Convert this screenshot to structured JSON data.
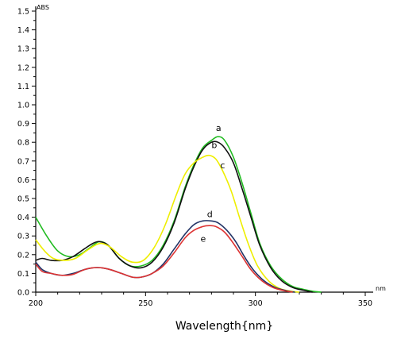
{
  "chart_data": {
    "type": "line",
    "title": "",
    "ylabel": "ABS",
    "xlabel": "Wavelength{nm}",
    "x_unit": "nm",
    "xlim": [
      200,
      350
    ],
    "ylim": [
      0,
      1.5
    ],
    "xticks": [
      200,
      250,
      300,
      350
    ],
    "xtick_labels": [
      "200",
      "250",
      "300",
      "350"
    ],
    "yticks": [
      0,
      0.1,
      0.2,
      0.3,
      0.4,
      0.5,
      0.6,
      0.7,
      0.8,
      0.9,
      1.0,
      1.1,
      1.2,
      1.3,
      1.4,
      1.5
    ],
    "ytick_labels": [
      "0.0",
      "0.1",
      "0.2",
      "0.3",
      "0.4",
      "0.5",
      "0.6",
      "0.7",
      "0.8",
      "0.9",
      "1.0",
      "1.1",
      "1.2",
      "1.3",
      "1.4",
      "1.5"
    ],
    "grid": false,
    "legend": "none",
    "series": [
      {
        "name": "a",
        "color": "#22bb22",
        "label_at": [
          282,
          0.86
        ],
        "x": [
          200,
          205,
          210,
          215,
          220,
          225,
          229,
          233,
          238,
          243,
          248,
          253,
          258,
          263,
          268,
          272,
          276,
          280,
          283,
          286,
          290,
          294,
          298,
          302,
          307,
          312,
          317,
          322,
          326,
          330
        ],
        "y": [
          0.4,
          0.3,
          0.22,
          0.19,
          0.2,
          0.24,
          0.27,
          0.25,
          0.18,
          0.14,
          0.14,
          0.17,
          0.25,
          0.38,
          0.56,
          0.68,
          0.77,
          0.81,
          0.83,
          0.81,
          0.72,
          0.58,
          0.42,
          0.26,
          0.14,
          0.07,
          0.03,
          0.015,
          0.005,
          0.0
        ]
      },
      {
        "name": "b",
        "color": "#111111",
        "label_at": [
          280,
          0.77
        ],
        "x": [
          200,
          203,
          207,
          212,
          217,
          222,
          226,
          229,
          233,
          238,
          243,
          248,
          253,
          258,
          263,
          268,
          272,
          276,
          280,
          283,
          286,
          290,
          294,
          298,
          302,
          307,
          312,
          317,
          322,
          326
        ],
        "y": [
          0.17,
          0.18,
          0.17,
          0.17,
          0.19,
          0.23,
          0.26,
          0.27,
          0.25,
          0.18,
          0.14,
          0.13,
          0.16,
          0.24,
          0.37,
          0.55,
          0.67,
          0.76,
          0.8,
          0.8,
          0.77,
          0.69,
          0.55,
          0.4,
          0.25,
          0.13,
          0.06,
          0.025,
          0.01,
          0.0
        ]
      },
      {
        "name": "c",
        "color": "#eeee00",
        "label_at": [
          284,
          0.66
        ],
        "x": [
          200,
          204,
          208,
          213,
          218,
          223,
          227,
          230,
          234,
          239,
          244,
          249,
          254,
          259,
          264,
          268,
          272,
          276,
          279,
          282,
          285,
          289,
          293,
          297,
          301,
          306,
          311,
          316,
          320
        ],
        "y": [
          0.28,
          0.22,
          0.18,
          0.17,
          0.18,
          0.22,
          0.25,
          0.26,
          0.24,
          0.19,
          0.16,
          0.17,
          0.24,
          0.36,
          0.52,
          0.63,
          0.69,
          0.72,
          0.73,
          0.71,
          0.65,
          0.54,
          0.39,
          0.25,
          0.14,
          0.06,
          0.02,
          0.005,
          0.0
        ]
      },
      {
        "name": "d",
        "color": "#223366",
        "label_at": [
          278,
          0.4
        ],
        "x": [
          200,
          203,
          207,
          212,
          217,
          222,
          226,
          230,
          234,
          239,
          244,
          248,
          253,
          258,
          263,
          268,
          272,
          276,
          280,
          283,
          287,
          291,
          295,
          299,
          304,
          309,
          314,
          318
        ],
        "y": [
          0.16,
          0.12,
          0.1,
          0.09,
          0.1,
          0.12,
          0.13,
          0.13,
          0.12,
          0.1,
          0.08,
          0.08,
          0.1,
          0.15,
          0.23,
          0.31,
          0.36,
          0.38,
          0.38,
          0.37,
          0.33,
          0.27,
          0.19,
          0.12,
          0.06,
          0.025,
          0.008,
          0.0
        ]
      },
      {
        "name": "e",
        "color": "#dd3333",
        "label_at": [
          275,
          0.27
        ],
        "x": [
          200,
          203,
          207,
          212,
          217,
          222,
          226,
          230,
          234,
          239,
          244,
          248,
          253,
          258,
          263,
          268,
          272,
          276,
          279,
          282,
          286,
          290,
          294,
          298,
          303,
          308,
          313,
          317
        ],
        "y": [
          0.15,
          0.11,
          0.1,
          0.09,
          0.095,
          0.12,
          0.13,
          0.13,
          0.12,
          0.1,
          0.08,
          0.08,
          0.1,
          0.14,
          0.21,
          0.29,
          0.33,
          0.35,
          0.355,
          0.35,
          0.32,
          0.26,
          0.19,
          0.12,
          0.06,
          0.025,
          0.008,
          0.0
        ]
      }
    ]
  }
}
